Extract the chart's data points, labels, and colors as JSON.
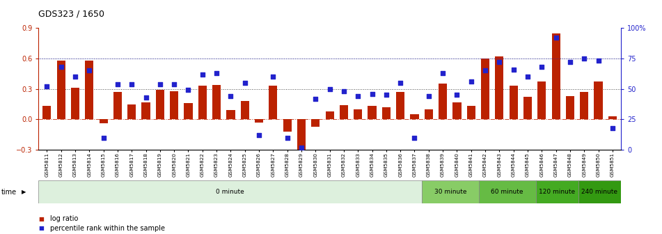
{
  "title": "GDS323 / 1650",
  "samples": [
    "GSM5811",
    "GSM5812",
    "GSM5813",
    "GSM5814",
    "GSM5815",
    "GSM5816",
    "GSM5817",
    "GSM5818",
    "GSM5819",
    "GSM5820",
    "GSM5821",
    "GSM5822",
    "GSM5823",
    "GSM5824",
    "GSM5825",
    "GSM5826",
    "GSM5827",
    "GSM5828",
    "GSM5829",
    "GSM5830",
    "GSM5831",
    "GSM5832",
    "GSM5833",
    "GSM5834",
    "GSM5835",
    "GSM5836",
    "GSM5837",
    "GSM5838",
    "GSM5839",
    "GSM5840",
    "GSM5841",
    "GSM5842",
    "GSM5843",
    "GSM5844",
    "GSM5845",
    "GSM5846",
    "GSM5847",
    "GSM5848",
    "GSM5849",
    "GSM5850",
    "GSM5851"
  ],
  "log_ratio": [
    0.13,
    0.58,
    0.31,
    0.58,
    -0.04,
    0.27,
    0.15,
    0.17,
    0.29,
    0.28,
    0.16,
    0.33,
    0.34,
    0.09,
    0.18,
    -0.03,
    0.33,
    -0.12,
    -0.3,
    -0.07,
    0.08,
    0.14,
    0.1,
    0.13,
    0.12,
    0.27,
    0.05,
    0.1,
    0.35,
    0.17,
    0.13,
    0.6,
    0.62,
    0.33,
    0.22,
    0.37,
    0.85,
    0.23,
    0.27,
    0.37,
    0.03
  ],
  "percentile": [
    0.52,
    0.68,
    0.6,
    0.65,
    0.1,
    0.54,
    0.54,
    0.43,
    0.54,
    0.54,
    0.49,
    0.62,
    0.63,
    0.44,
    0.55,
    0.12,
    0.6,
    0.1,
    0.02,
    0.42,
    0.5,
    0.48,
    0.44,
    0.46,
    0.45,
    0.55,
    0.1,
    0.44,
    0.63,
    0.45,
    0.56,
    0.65,
    0.72,
    0.66,
    0.6,
    0.68,
    0.92,
    0.72,
    0.75,
    0.73,
    0.18
  ],
  "time_groups": [
    {
      "label": "0 minute",
      "start": 0,
      "end": 27,
      "color": "#ddf0dd"
    },
    {
      "label": "30 minute",
      "start": 27,
      "end": 31,
      "color": "#88cc66"
    },
    {
      "label": "60 minute",
      "start": 31,
      "end": 35,
      "color": "#66bb44"
    },
    {
      "label": "120 minute",
      "start": 35,
      "end": 38,
      "color": "#44aa22"
    },
    {
      "label": "240 minute",
      "start": 38,
      "end": 41,
      "color": "#339911"
    }
  ],
  "bar_color": "#bb2200",
  "dot_color": "#2222cc",
  "bar_ylim": [
    -0.3,
    0.9
  ],
  "pct_ylim": [
    0.0,
    1.0
  ],
  "left_yticks": [
    -0.3,
    0.0,
    0.3,
    0.6,
    0.9
  ],
  "right_yticks": [
    0.0,
    0.25,
    0.5,
    0.75,
    1.0
  ],
  "right_yticklabels": [
    "0",
    "25",
    "50",
    "75",
    "100%"
  ],
  "bar_ref_lines": [
    0.0,
    0.3,
    0.6
  ],
  "pct_ref_line": 0.75,
  "background_color": "#ffffff"
}
